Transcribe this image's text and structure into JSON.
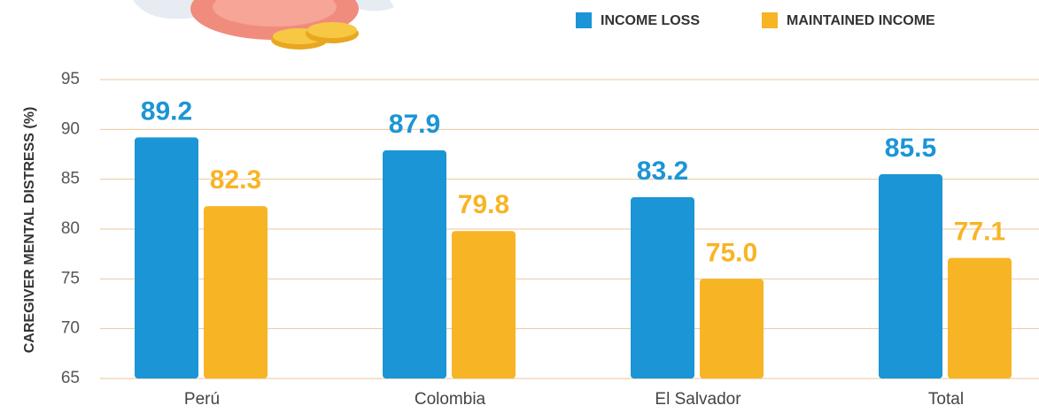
{
  "chart_data": {
    "type": "bar",
    "y_label": "CAREGIVER MENTAL DISTRESS (%)",
    "categories": [
      "Perú",
      "Colombia",
      "El Salvador",
      "Total"
    ],
    "series": [
      {
        "name": "INCOME LOSS",
        "color": "#1b95d5",
        "values": [
          89.2,
          87.9,
          83.2,
          85.5
        ],
        "value_labels": [
          "89.2",
          "87.9",
          "83.2",
          "85.5"
        ]
      },
      {
        "name": "MAINTAINED INCOME",
        "color": "#f7b425",
        "values": [
          82.3,
          79.8,
          75.0,
          77.1
        ],
        "value_labels": [
          "82.3",
          "79.8",
          "75.0",
          "77.1"
        ]
      }
    ],
    "ylim": [
      65,
      95
    ],
    "yticks": [
      65,
      70,
      75,
      80,
      85,
      90,
      95
    ],
    "grid": true,
    "legend": "top-right"
  }
}
